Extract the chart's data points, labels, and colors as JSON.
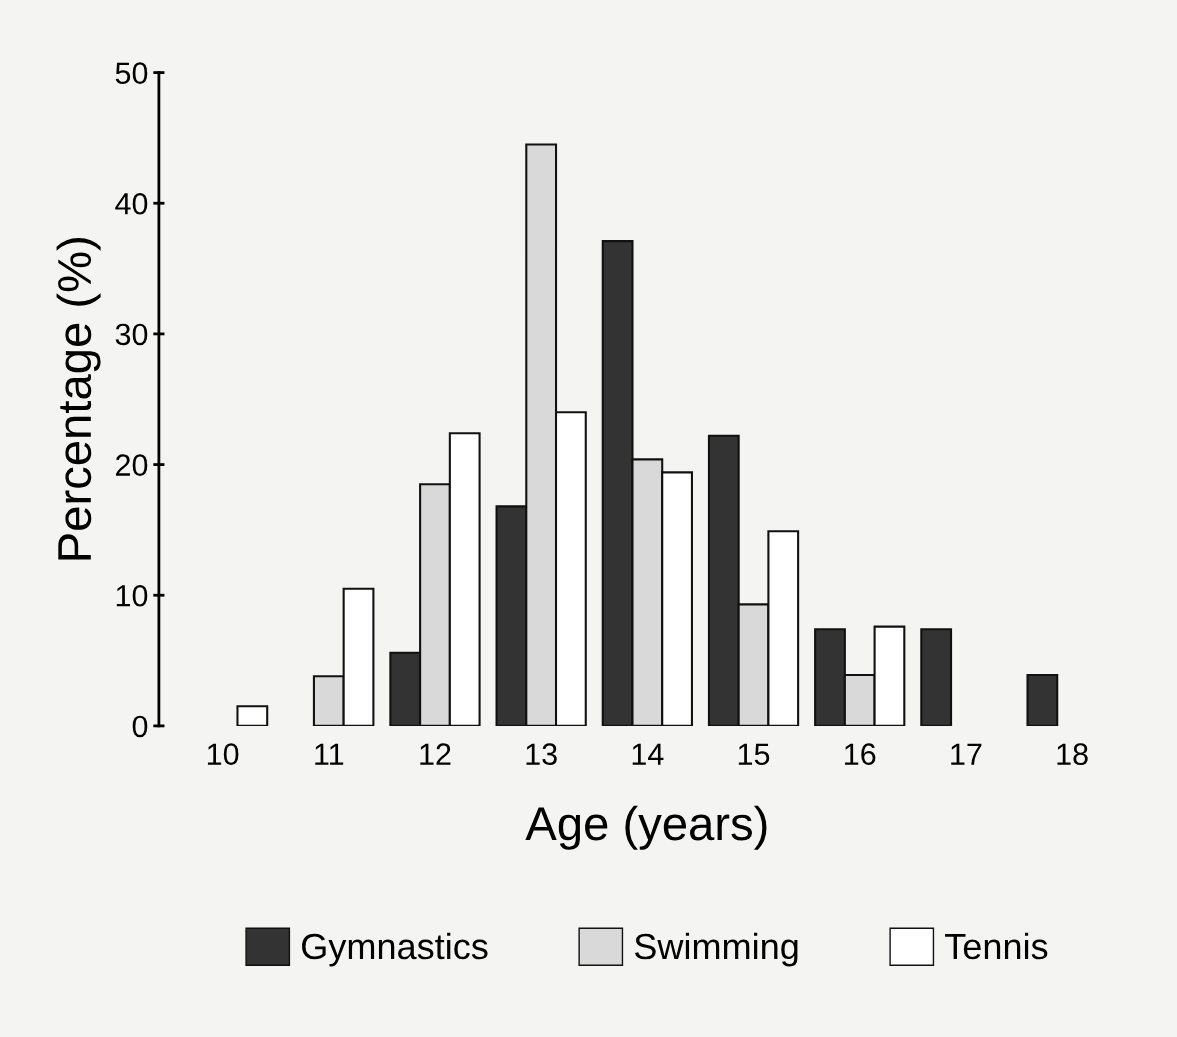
{
  "chart_data": {
    "type": "bar",
    "xlabel": "Age (years)",
    "ylabel": "Percentage (%)",
    "categories": [
      "10",
      "11",
      "12",
      "13",
      "14",
      "15",
      "16",
      "17",
      "18"
    ],
    "series": [
      {
        "name": "Gymnastics",
        "color": "#333333",
        "values": [
          null,
          null,
          5.6,
          16.8,
          37.1,
          22.2,
          7.4,
          7.4,
          3.9
        ]
      },
      {
        "name": "Swimming",
        "color": "#d9d9d9",
        "values": [
          null,
          3.8,
          18.5,
          44.5,
          20.4,
          9.3,
          3.9,
          null,
          null
        ]
      },
      {
        "name": "Tennis",
        "color": "#ffffff",
        "values": [
          1.5,
          10.5,
          22.4,
          24.0,
          19.4,
          14.9,
          7.6,
          null,
          null
        ]
      }
    ],
    "ylim": [
      0,
      50
    ],
    "yticks": [
      0,
      10,
      20,
      30,
      40,
      50
    ],
    "grid": false,
    "legend": "bottom"
  }
}
